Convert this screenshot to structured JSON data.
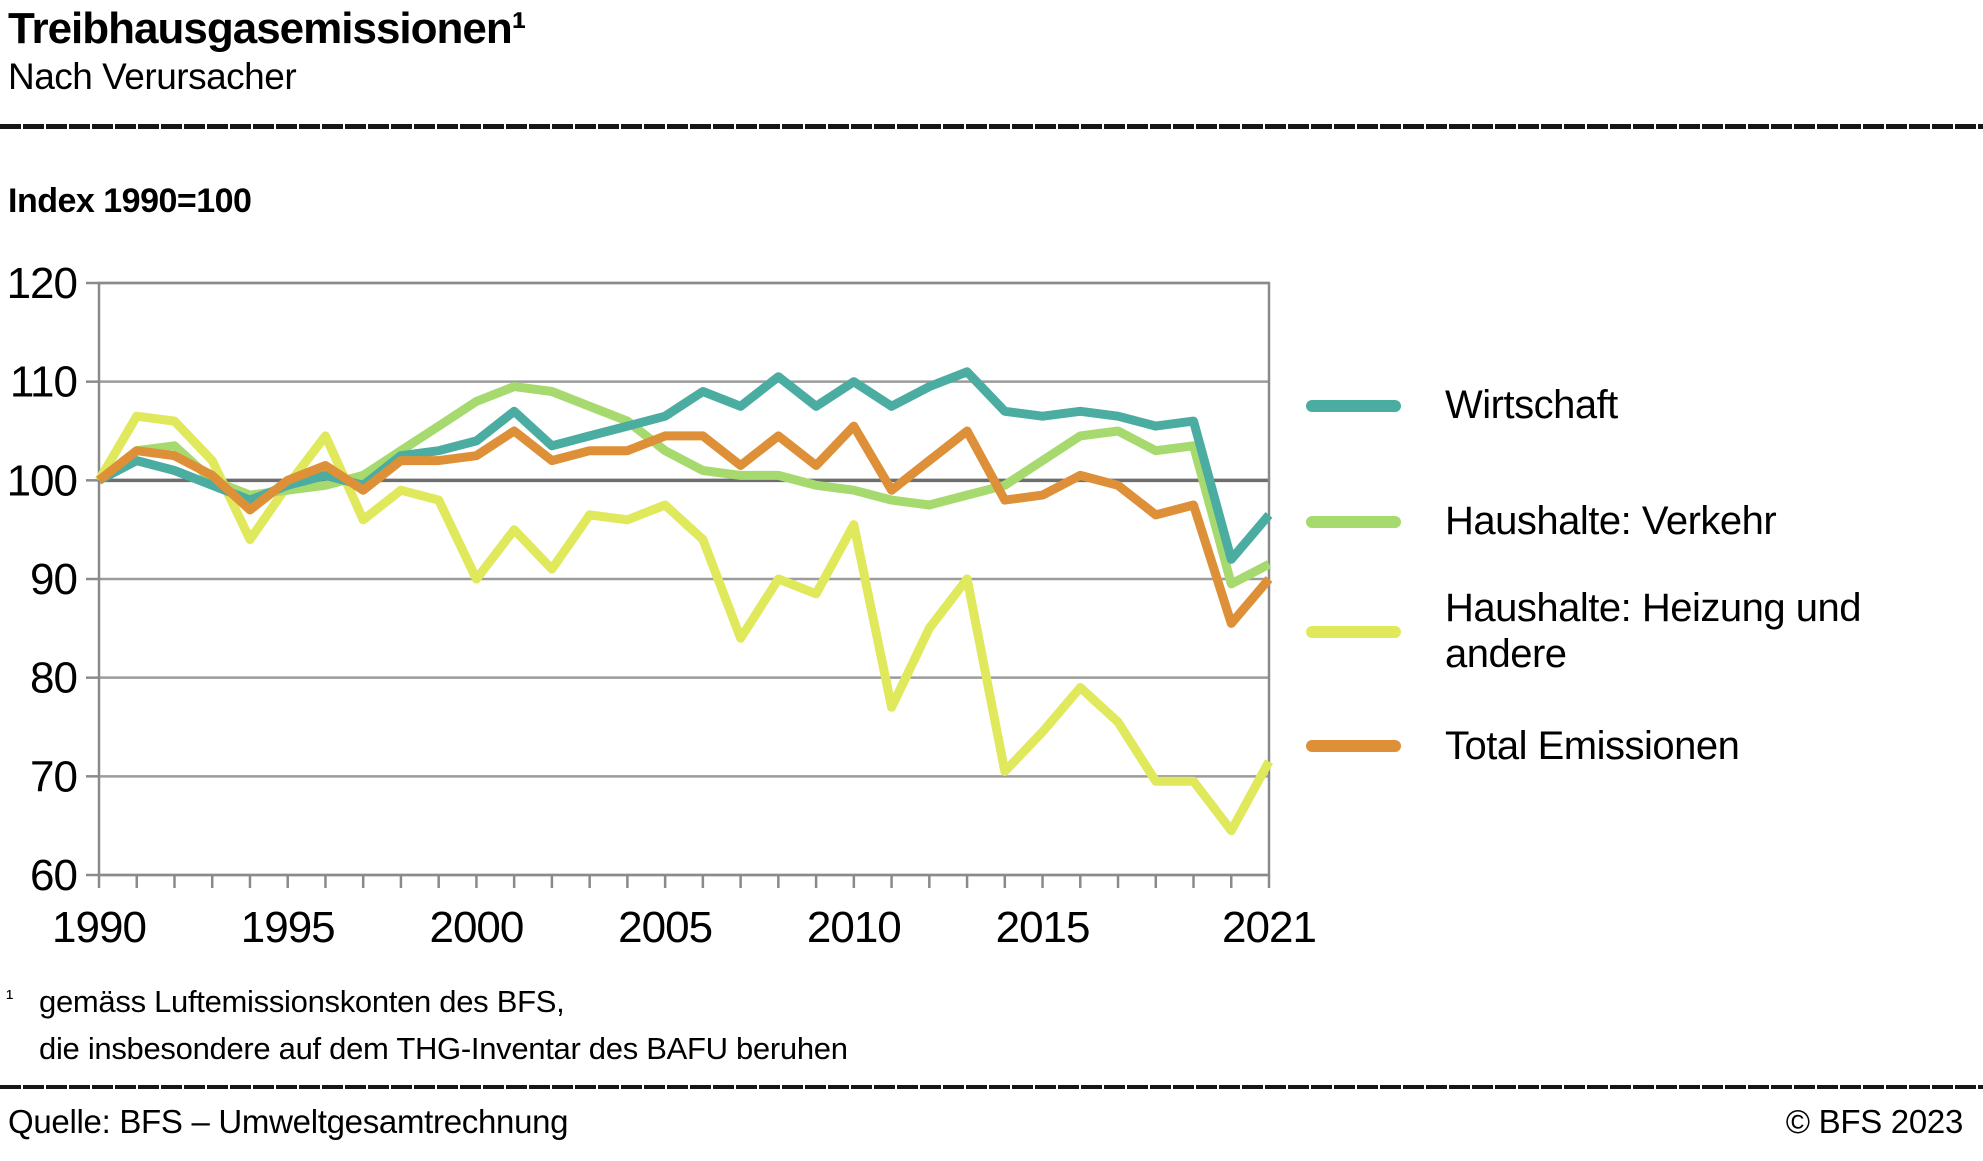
{
  "header": {
    "title": "Treibhausgasemissionen¹",
    "subtitle": "Nach Verursacher"
  },
  "chart": {
    "index_label": "Index 1990=100"
  },
  "chart_data": {
    "type": "line",
    "title": "Treibhausgasemissionen — Nach Verursacher",
    "x": [
      1990,
      1991,
      1992,
      1993,
      1994,
      1995,
      1996,
      1997,
      1998,
      1999,
      2000,
      2001,
      2002,
      2003,
      2004,
      2005,
      2006,
      2007,
      2008,
      2009,
      2010,
      2011,
      2012,
      2013,
      2014,
      2015,
      2016,
      2017,
      2018,
      2019,
      2020,
      2021
    ],
    "x_tick_labels": [
      "1990",
      "1995",
      "2000",
      "2005",
      "2010",
      "2015",
      "2021"
    ],
    "x_tick_years": [
      1990,
      1995,
      2000,
      2005,
      2010,
      2015,
      2021
    ],
    "ylim": [
      60,
      120
    ],
    "yticks": [
      60,
      70,
      80,
      90,
      100,
      110,
      120
    ],
    "baseline_value": 100,
    "grid": true,
    "legend_position": "right",
    "draw_order": [
      2,
      1,
      0,
      3
    ],
    "series": [
      {
        "name": "Wirtschaft",
        "color": "#4BADA1",
        "values": [
          100,
          102,
          101,
          99.5,
          98,
          99.5,
          100.5,
          99.5,
          102.5,
          103,
          104,
          107,
          103.5,
          104.5,
          105.5,
          106.5,
          109,
          107.5,
          110.5,
          107.5,
          110,
          107.5,
          109.5,
          111,
          107,
          106.5,
          107,
          106.5,
          105.5,
          106,
          92,
          96.5
        ]
      },
      {
        "name": "Haushalte: Verkehr",
        "color": "#A7DA6E",
        "values": [
          100,
          103,
          103.5,
          100,
          98.5,
          99,
          99.5,
          100.5,
          103,
          105.5,
          108,
          109.5,
          109,
          107.5,
          106,
          103,
          101,
          100.5,
          100.5,
          99.5,
          99,
          98,
          97.5,
          98.5,
          99.5,
          102,
          104.5,
          105,
          103,
          103.5,
          89.5,
          91.5
        ]
      },
      {
        "name": "Haushalte: Heizung und andere",
        "color": "#E0E95C",
        "values": [
          100,
          106.5,
          106,
          102,
          94,
          99.5,
          104.5,
          96,
          99,
          98,
          90,
          95,
          91,
          96.5,
          96,
          97.5,
          94,
          84,
          90,
          88.5,
          95.5,
          77,
          85,
          90,
          70.5,
          74.5,
          79,
          75.5,
          69.5,
          69.5,
          64.5,
          71.5
        ]
      },
      {
        "name": "Total Emissionen",
        "color": "#DE9038",
        "values": [
          100,
          103,
          102.5,
          100.5,
          97,
          100,
          101.5,
          99,
          102,
          102,
          102.5,
          105,
          102,
          103,
          103,
          104.5,
          104.5,
          101.5,
          104.5,
          101.5,
          105.5,
          99,
          102,
          105,
          98,
          98.5,
          100.5,
          99.5,
          96.5,
          97.5,
          85.5,
          90
        ]
      }
    ],
    "grid_color": "#9b9b9b",
    "baseline_color": "#6e6e6e",
    "axis_color": "#8a8a8a",
    "tick_label_color": "#000000"
  },
  "footnote": {
    "marker": "¹",
    "line1": "gemäss Luftemissionskonten des BFS,",
    "line2": "die insbesondere auf dem THG-Inventar des BAFU beruhen"
  },
  "footer": {
    "source": "Quelle: BFS – Umweltgesamtrechnung",
    "copyright": "© BFS 2023"
  }
}
